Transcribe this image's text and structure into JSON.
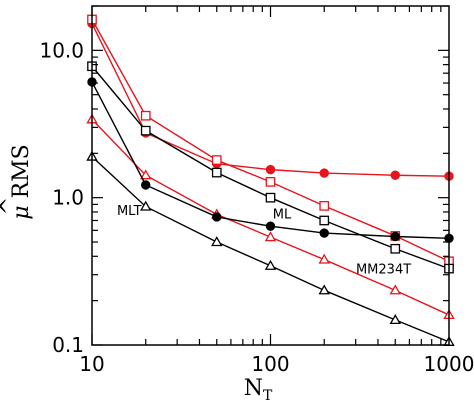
{
  "chart_data": {
    "type": "line",
    "xscale": "log",
    "yscale": "log",
    "xlim": [
      10,
      1000
    ],
    "ylim": [
      0.1,
      20
    ],
    "x_ticks": [
      {
        "value": 10,
        "label": "10"
      },
      {
        "value": 100,
        "label": "100"
      },
      {
        "value": 1000,
        "label": "1000"
      }
    ],
    "y_ticks": [
      {
        "value": 0.1,
        "label": "0.1"
      },
      {
        "value": 1,
        "label": "1.0"
      },
      {
        "value": 10,
        "label": "10.0"
      }
    ],
    "xlabel": "N",
    "xlabel_sub": "T",
    "ylabel": "RMS",
    "ylabel_symbol": "μ",
    "ylabel_hat": "^",
    "grid": false,
    "x": [
      10,
      20,
      50,
      100,
      200,
      500,
      1000
    ],
    "series": [
      {
        "color": "#e8141c",
        "marker": "filled-circle",
        "values": [
          15.2,
          2.75,
          1.7,
          1.55,
          1.47,
          1.42,
          1.4
        ]
      },
      {
        "color": "#e8141c",
        "marker": "open-square",
        "values": [
          16.2,
          3.6,
          1.8,
          1.28,
          0.88,
          0.55,
          0.37
        ]
      },
      {
        "color": "#e8141c",
        "marker": "open-triangle",
        "values": [
          3.4,
          1.42,
          0.77,
          0.54,
          0.38,
          0.235,
          0.16
        ]
      },
      {
        "color": "#000000",
        "marker": "filled-circle",
        "values": [
          6.1,
          1.22,
          0.74,
          0.64,
          0.575,
          0.545,
          0.53
        ]
      },
      {
        "color": "#000000",
        "marker": "open-square",
        "values": [
          7.8,
          2.85,
          1.48,
          1.0,
          0.7,
          0.45,
          0.33
        ]
      },
      {
        "color": "#000000",
        "marker": "open-triangle",
        "values": [
          1.9,
          0.87,
          0.5,
          0.345,
          0.235,
          0.148,
          0.105
        ]
      }
    ],
    "annotations": [
      {
        "text": "MLT",
        "x": 13.8,
        "y": 0.76
      },
      {
        "text": "ML",
        "x": 103,
        "y": 0.72
      },
      {
        "text": "MM234T",
        "x": 430,
        "y": 0.305
      }
    ]
  }
}
